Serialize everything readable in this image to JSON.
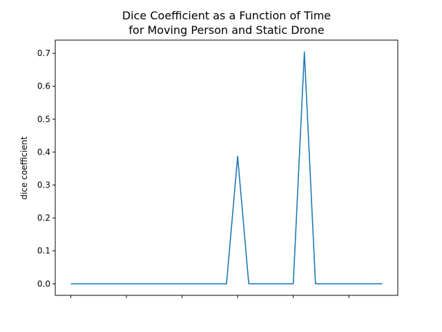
{
  "chart_data": {
    "type": "line",
    "title_line1": "Dice Coefficient as a Function of Time",
    "title_line2": "for Moving Person and Static Drone",
    "xlabel": "",
    "ylabel": "dice coefficient",
    "xlim": [
      -0.7,
      14.7
    ],
    "ylim": [
      -0.035,
      0.74
    ],
    "xtick_positions": [
      0,
      2.5,
      5,
      7.5,
      10,
      12.5
    ],
    "xtick_labels": [
      "",
      "",
      "",
      "",
      "",
      ""
    ],
    "yticks": [
      0.0,
      0.1,
      0.2,
      0.3,
      0.4,
      0.5,
      0.6,
      0.7
    ],
    "ytick_labels": [
      "0.0",
      "0.1",
      "0.2",
      "0.3",
      "0.4",
      "0.5",
      "0.6",
      "0.7"
    ],
    "grid": false,
    "series": [
      {
        "color": "#1f77b4",
        "x": [
          0,
          1,
          2,
          3,
          4,
          5,
          6,
          7,
          7.5,
          8,
          9,
          10,
          10.5,
          11,
          12,
          13,
          14
        ],
        "y": [
          0,
          0,
          0,
          0,
          0,
          0,
          0,
          0,
          0.387,
          0,
          0,
          0,
          0.704,
          0,
          0,
          0,
          0
        ]
      }
    ]
  }
}
